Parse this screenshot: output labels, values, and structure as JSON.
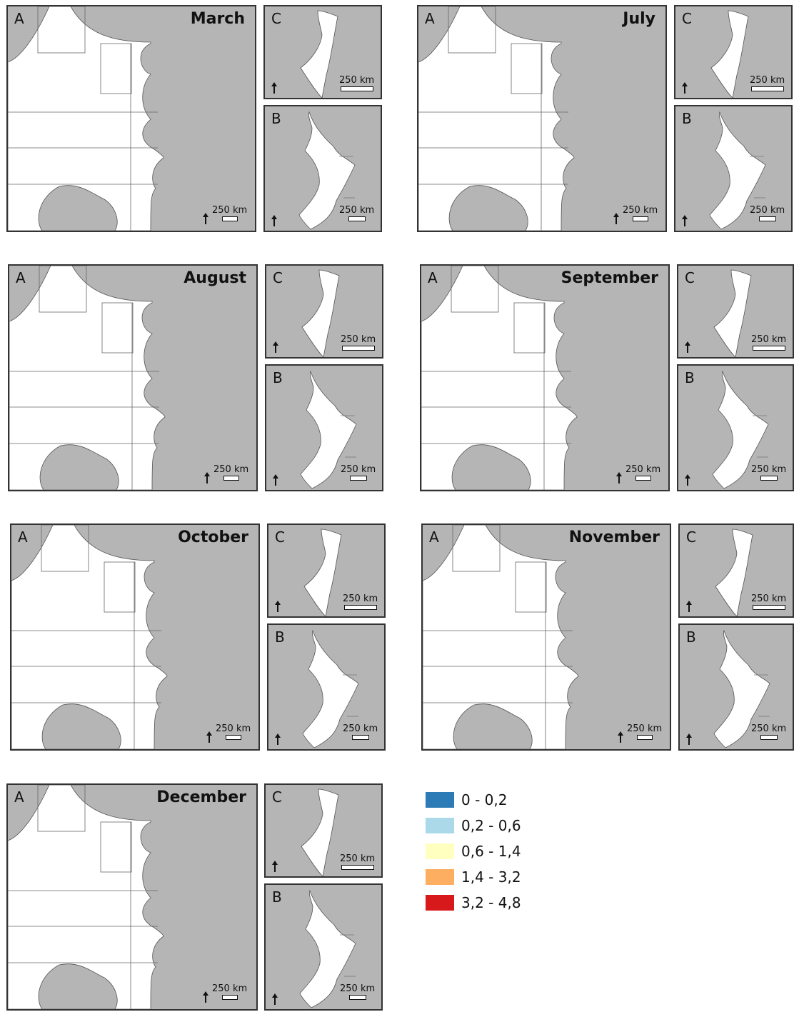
{
  "panels": [
    {
      "month": "March",
      "label_a": "A",
      "label_b": "B",
      "label_c": "C",
      "scale": "250 km"
    },
    {
      "month": "July",
      "label_a": "A",
      "label_b": "B",
      "label_c": "C",
      "scale": "250 km"
    },
    {
      "month": "August",
      "label_a": "A",
      "label_b": "B",
      "label_c": "C",
      "scale": "250 km"
    },
    {
      "month": "September",
      "label_a": "A",
      "label_b": "B",
      "label_c": "C",
      "scale": "250 km"
    },
    {
      "month": "October",
      "label_a": "A",
      "label_b": "B",
      "label_c": "C",
      "scale": "250 km"
    },
    {
      "month": "November",
      "label_a": "A",
      "label_b": "B",
      "label_c": "C",
      "scale": "250 km"
    },
    {
      "month": "December",
      "label_a": "A",
      "label_b": "B",
      "label_c": "C",
      "scale": "250 km"
    }
  ],
  "legend": [
    {
      "label": "0 - 0,2",
      "color": "#2c7bb6"
    },
    {
      "label": "0,2 - 0,6",
      "color": "#abd9e9"
    },
    {
      "label": "0,6 - 1,4",
      "color": "#ffffbf"
    },
    {
      "label": "1,4 - 3,2",
      "color": "#fdae61"
    },
    {
      "label": "3,2 - 4,8",
      "color": "#d7191c"
    }
  ],
  "colors": {
    "land": "#b5b5b5",
    "sea": "#ffffff",
    "border": "#333333"
  }
}
